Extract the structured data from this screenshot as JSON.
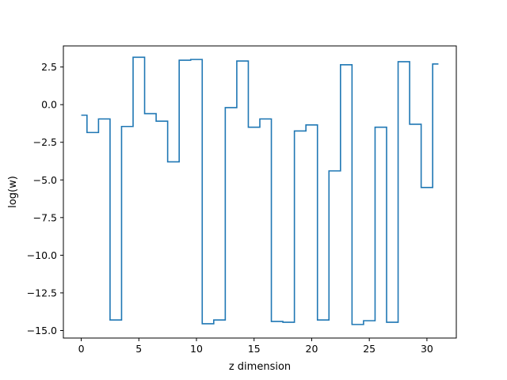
{
  "chart_data": {
    "type": "line",
    "drawstyle": "steps-mid",
    "title": "",
    "xlabel": "z dimension",
    "ylabel": "log(w)",
    "xlim": [
      -1.55,
      32.55
    ],
    "ylim": [
      -15.5,
      3.9
    ],
    "grid": false,
    "xticks": [
      0,
      5,
      10,
      15,
      20,
      25,
      30
    ],
    "xtick_labels": [
      "0",
      "5",
      "10",
      "15",
      "20",
      "25",
      "30"
    ],
    "yticks": [
      2.5,
      0.0,
      -2.5,
      -5.0,
      -7.5,
      -10.0,
      -12.5,
      -15.0
    ],
    "ytick_labels": [
      "2.5",
      "0.0",
      "−2.5",
      "−5.0",
      "−7.5",
      "−10.0",
      "−12.5",
      "−15.0"
    ],
    "series": [
      {
        "color": "#1f77b4",
        "x": [
          0,
          1,
          2,
          3,
          4,
          5,
          6,
          7,
          8,
          9,
          10,
          11,
          12,
          13,
          14,
          15,
          16,
          17,
          18,
          19,
          20,
          21,
          22,
          23,
          24,
          25,
          26,
          27,
          28,
          29,
          30,
          31
        ],
        "y": [
          -0.7,
          -1.85,
          -0.95,
          -14.3,
          -1.45,
          3.15,
          -0.6,
          -1.1,
          -3.8,
          2.95,
          3.0,
          -14.55,
          -14.3,
          -0.2,
          2.9,
          -1.5,
          -0.95,
          -14.4,
          -14.45,
          -1.75,
          -1.35,
          -14.3,
          -4.4,
          2.65,
          -14.6,
          -14.35,
          -1.5,
          -14.45,
          2.85,
          -1.3,
          -5.5,
          2.7
        ]
      }
    ]
  }
}
